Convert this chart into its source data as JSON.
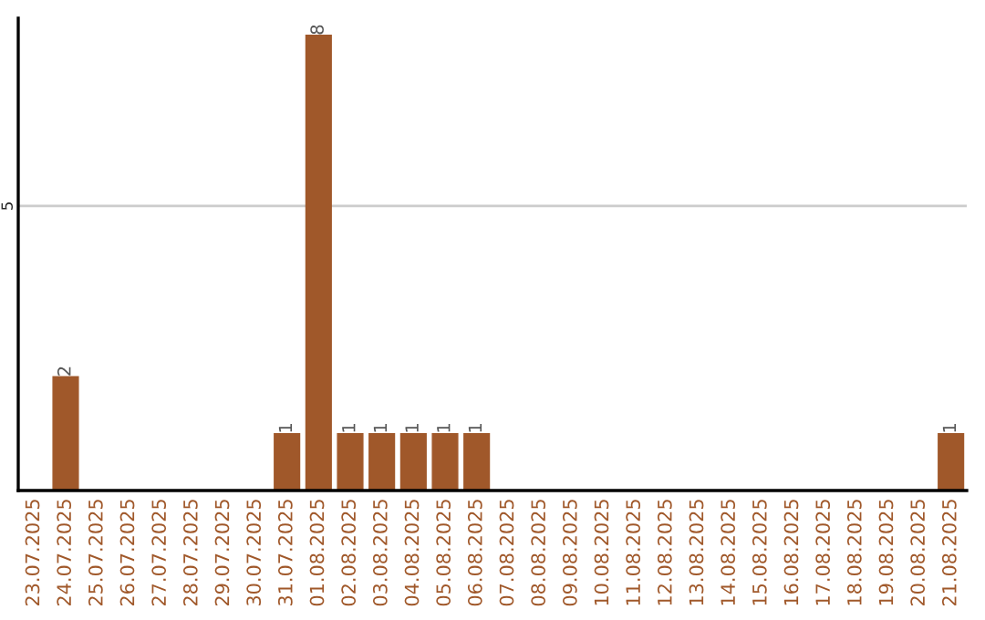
{
  "chart_data": {
    "type": "bar",
    "categories": [
      "23.07.2025",
      "24.07.2025",
      "25.07.2025",
      "26.07.2025",
      "27.07.2025",
      "28.07.2025",
      "29.07.2025",
      "30.07.2025",
      "31.07.2025",
      "01.08.2025",
      "02.08.2025",
      "03.08.2025",
      "04.08.2025",
      "05.08.2025",
      "06.08.2025",
      "07.08.2025",
      "08.08.2025",
      "09.08.2025",
      "10.08.2025",
      "11.08.2025",
      "12.08.2025",
      "13.08.2025",
      "14.08.2025",
      "15.08.2025",
      "16.08.2025",
      "17.08.2025",
      "18.08.2025",
      "19.08.2025",
      "20.08.2025",
      "21.08.2025"
    ],
    "values": [
      0,
      2,
      0,
      0,
      0,
      0,
      0,
      0,
      1,
      8,
      1,
      1,
      1,
      1,
      1,
      0,
      0,
      0,
      0,
      0,
      0,
      0,
      0,
      0,
      0,
      0,
      0,
      0,
      0,
      1
    ],
    "value_labels": [
      null,
      "2",
      null,
      null,
      null,
      null,
      null,
      null,
      "1",
      "8",
      "1",
      "1",
      "1",
      "1",
      "1",
      null,
      null,
      null,
      null,
      null,
      null,
      null,
      null,
      null,
      null,
      null,
      null,
      null,
      null,
      "1"
    ],
    "color": "#a0582a",
    "ylim": [
      0,
      8.3
    ],
    "yticks": [
      5
    ],
    "grid": "y",
    "legend": false
  }
}
